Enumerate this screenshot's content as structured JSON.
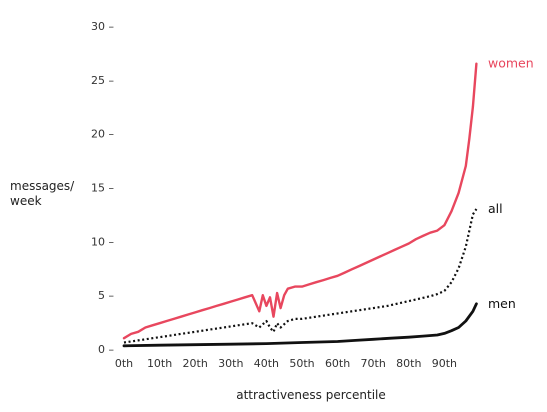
{
  "chart_data": {
    "type": "line",
    "title": "",
    "xlabel": "attractiveness percentile",
    "ylabel_lines": [
      "messages/",
      "week"
    ],
    "xlim": [
      0,
      100
    ],
    "ylim": [
      0,
      30
    ],
    "x_ticks": [
      0,
      10,
      20,
      30,
      40,
      50,
      60,
      70,
      80,
      90
    ],
    "x_tick_labels": [
      "0th",
      "10th",
      "20th",
      "30th",
      "40th",
      "50th",
      "60th",
      "70th",
      "80th",
      "90th"
    ],
    "y_ticks": [
      0,
      5,
      10,
      15,
      20,
      25,
      30
    ],
    "y_tick_labels": [
      "0 –",
      "5 –",
      "10 –",
      "15 –",
      "20 –",
      "25 –",
      "30 –"
    ],
    "grid": false,
    "legend": "inline labels at line ends",
    "series": [
      {
        "name": "women",
        "color": "#e8475e",
        "style": "solid",
        "x": [
          0,
          2,
          4,
          6,
          8,
          10,
          12,
          14,
          16,
          18,
          20,
          22,
          24,
          26,
          28,
          30,
          32,
          34,
          36,
          38,
          39,
          40,
          41,
          42,
          43,
          44,
          45,
          46,
          48,
          50,
          52,
          54,
          56,
          58,
          60,
          62,
          64,
          66,
          68,
          70,
          72,
          74,
          76,
          78,
          80,
          82,
          84,
          86,
          88,
          90,
          92,
          94,
          96,
          97,
          98,
          99
        ],
        "values": [
          1.0,
          1.4,
          1.6,
          2.0,
          2.2,
          2.4,
          2.6,
          2.8,
          3.0,
          3.2,
          3.4,
          3.6,
          3.8,
          4.0,
          4.2,
          4.4,
          4.6,
          4.8,
          5.0,
          3.5,
          5.0,
          4.0,
          4.8,
          3.0,
          5.2,
          3.8,
          5.0,
          5.6,
          5.8,
          5.8,
          6.0,
          6.2,
          6.4,
          6.6,
          6.8,
          7.1,
          7.4,
          7.7,
          8.0,
          8.3,
          8.6,
          8.9,
          9.2,
          9.5,
          9.8,
          10.2,
          10.5,
          10.8,
          11.0,
          11.5,
          12.8,
          14.5,
          17.0,
          19.5,
          22.5,
          26.5
        ]
      },
      {
        "name": "all",
        "color": "#111111",
        "style": "dotted",
        "x": [
          0,
          4,
          8,
          12,
          16,
          20,
          24,
          28,
          32,
          36,
          38,
          40,
          41,
          42,
          43,
          44,
          46,
          48,
          50,
          54,
          58,
          62,
          66,
          70,
          74,
          78,
          82,
          86,
          88,
          90,
          92,
          94,
          96,
          98,
          99
        ],
        "values": [
          0.6,
          0.8,
          1.0,
          1.2,
          1.4,
          1.6,
          1.8,
          2.0,
          2.2,
          2.4,
          2.0,
          2.6,
          2.0,
          1.6,
          2.4,
          2.0,
          2.6,
          2.8,
          2.8,
          3.0,
          3.2,
          3.4,
          3.6,
          3.8,
          4.0,
          4.3,
          4.6,
          4.9,
          5.1,
          5.4,
          6.2,
          7.5,
          9.5,
          12.5,
          13.0
        ]
      },
      {
        "name": "men",
        "color": "#111111",
        "style": "solid",
        "x": [
          0,
          10,
          20,
          30,
          40,
          50,
          60,
          65,
          70,
          75,
          80,
          84,
          88,
          90,
          92,
          94,
          96,
          98,
          99
        ],
        "values": [
          0.3,
          0.35,
          0.4,
          0.45,
          0.5,
          0.6,
          0.7,
          0.8,
          0.9,
          1.0,
          1.1,
          1.2,
          1.3,
          1.45,
          1.7,
          2.0,
          2.6,
          3.5,
          4.2
        ]
      }
    ]
  }
}
